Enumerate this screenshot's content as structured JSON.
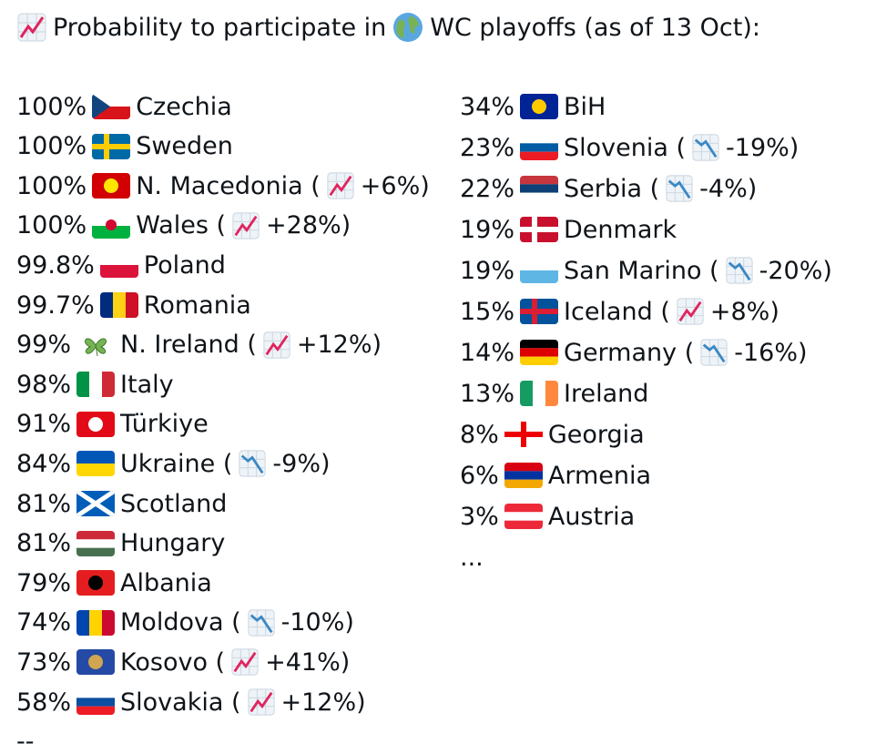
{
  "header": {
    "title_start": "Probability to participate in",
    "title_end": "WC playoffs (as of 13 Oct):"
  },
  "left": {
    "rows": [
      {
        "pct": "100%",
        "name": "Czechia"
      },
      {
        "pct": "100%",
        "name": "Sweden"
      },
      {
        "pct": "100%",
        "name": "N. Macedonia (",
        "change": "+6%)"
      },
      {
        "pct": "100%",
        "name": "Wales (",
        "change": "+28%)"
      },
      {
        "pct": "99.8%",
        "name": "Poland"
      },
      {
        "pct": "99.7%",
        "name": "Romania"
      },
      {
        "pct": "99%",
        "name": "N. Ireland (",
        "change": "+12%)"
      },
      {
        "pct": "98%",
        "name": "Italy"
      },
      {
        "pct": "91%",
        "name": "Türkiye"
      },
      {
        "pct": "84%",
        "name": "Ukraine (",
        "change": "-9%)"
      },
      {
        "pct": "81%",
        "name": "Scotland"
      },
      {
        "pct": "81%",
        "name": "Hungary"
      },
      {
        "pct": "79%",
        "name": "Albania"
      },
      {
        "pct": "74%",
        "name": "Moldova (",
        "change": "-10%)"
      },
      {
        "pct": "73%",
        "name": "Kosovo (",
        "change": "+41%)"
      },
      {
        "pct": "58%",
        "name": "Slovakia (",
        "change": "+12%)"
      }
    ],
    "footer": "--"
  },
  "right": {
    "rows": [
      {
        "pct": "34%",
        "name": "BiH"
      },
      {
        "pct": "23%",
        "name": "Slovenia (",
        "change": "-19%)"
      },
      {
        "pct": "22%",
        "name": "Serbia (",
        "change": "-4%)"
      },
      {
        "pct": "19%",
        "name": "Denmark"
      },
      {
        "pct": "19%",
        "name": "San Marino (",
        "change": "-20%)"
      },
      {
        "pct": "15%",
        "name": "Iceland (",
        "change": "+8%)"
      },
      {
        "pct": "14%",
        "name": "Germany (",
        "change": "-16%)"
      },
      {
        "pct": "13%",
        "name": "Ireland"
      },
      {
        "pct": "8%",
        "name": "Georgia"
      },
      {
        "pct": "6%",
        "name": "Armenia"
      },
      {
        "pct": "3%",
        "name": "Austria"
      }
    ],
    "footer": "..."
  }
}
